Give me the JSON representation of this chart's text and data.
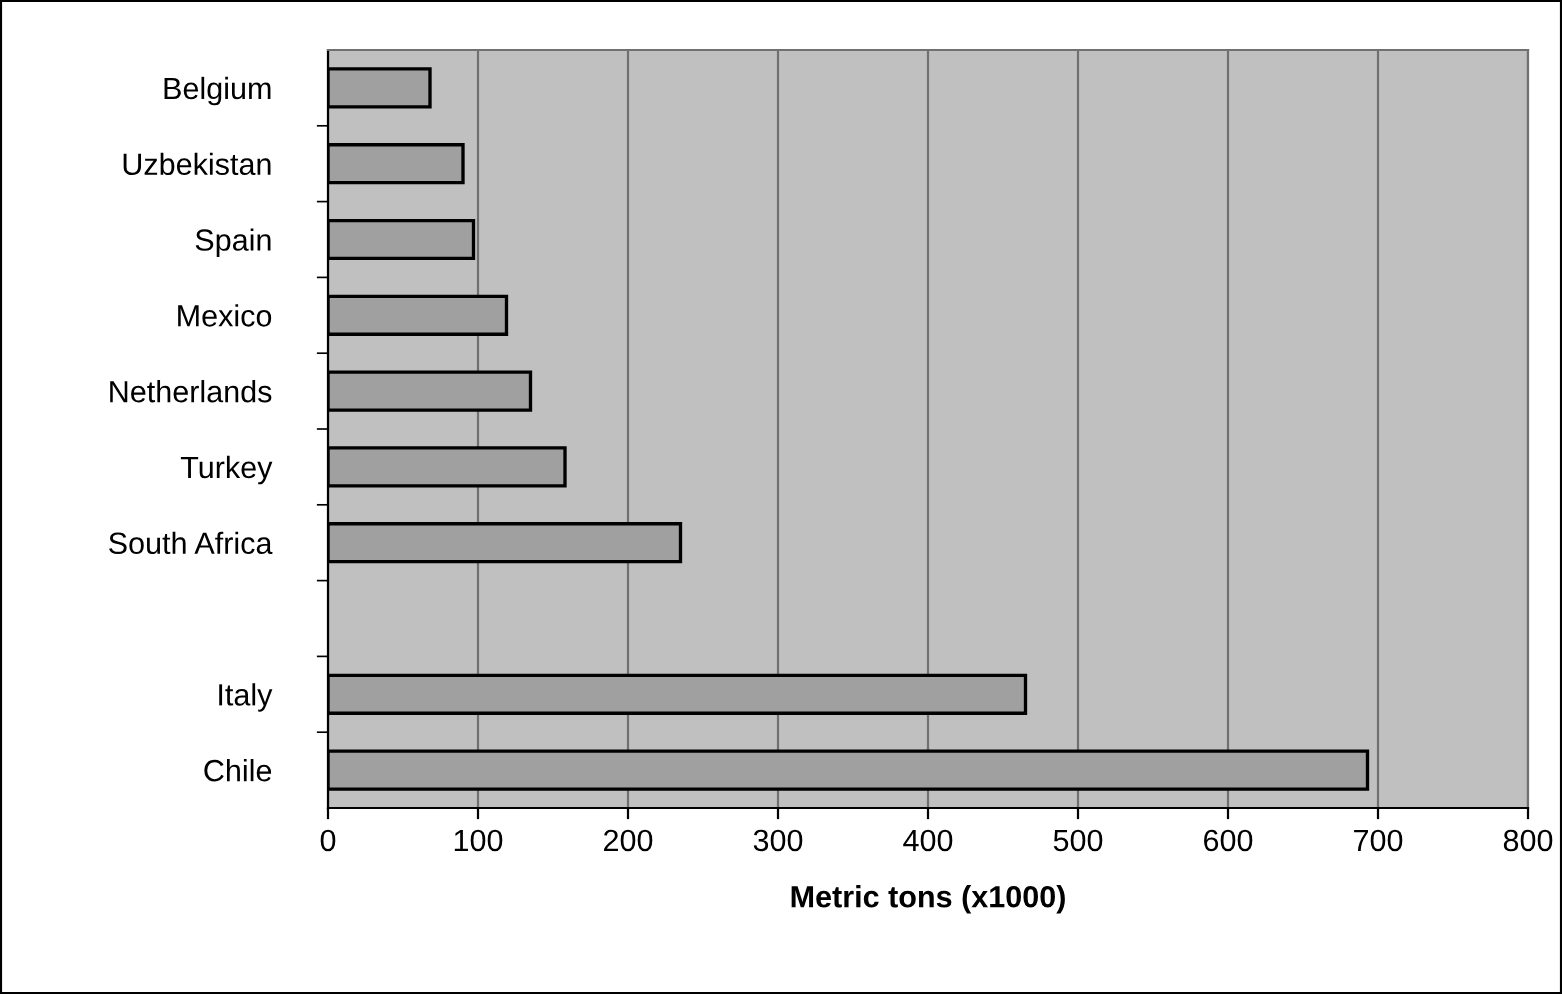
{
  "chart_data": {
    "type": "bar",
    "orientation": "horizontal",
    "xlabel": "Metric tons (x1000)",
    "categories": [
      "Belgium",
      "Uzbekistan",
      "Spain",
      "Mexico",
      "Netherlands",
      "Turkey",
      "South Africa",
      null,
      "Italy",
      "Chile"
    ],
    "series": [
      {
        "color": "#a0a0a0",
        "values": [
          68,
          90,
          97,
          119,
          135,
          158,
          235,
          null,
          465,
          693
        ]
      }
    ],
    "xlim": [
      0,
      800
    ],
    "xticks": [
      0,
      100,
      200,
      300,
      400,
      500,
      600,
      700,
      800
    ],
    "grid": "x",
    "legend": false
  }
}
